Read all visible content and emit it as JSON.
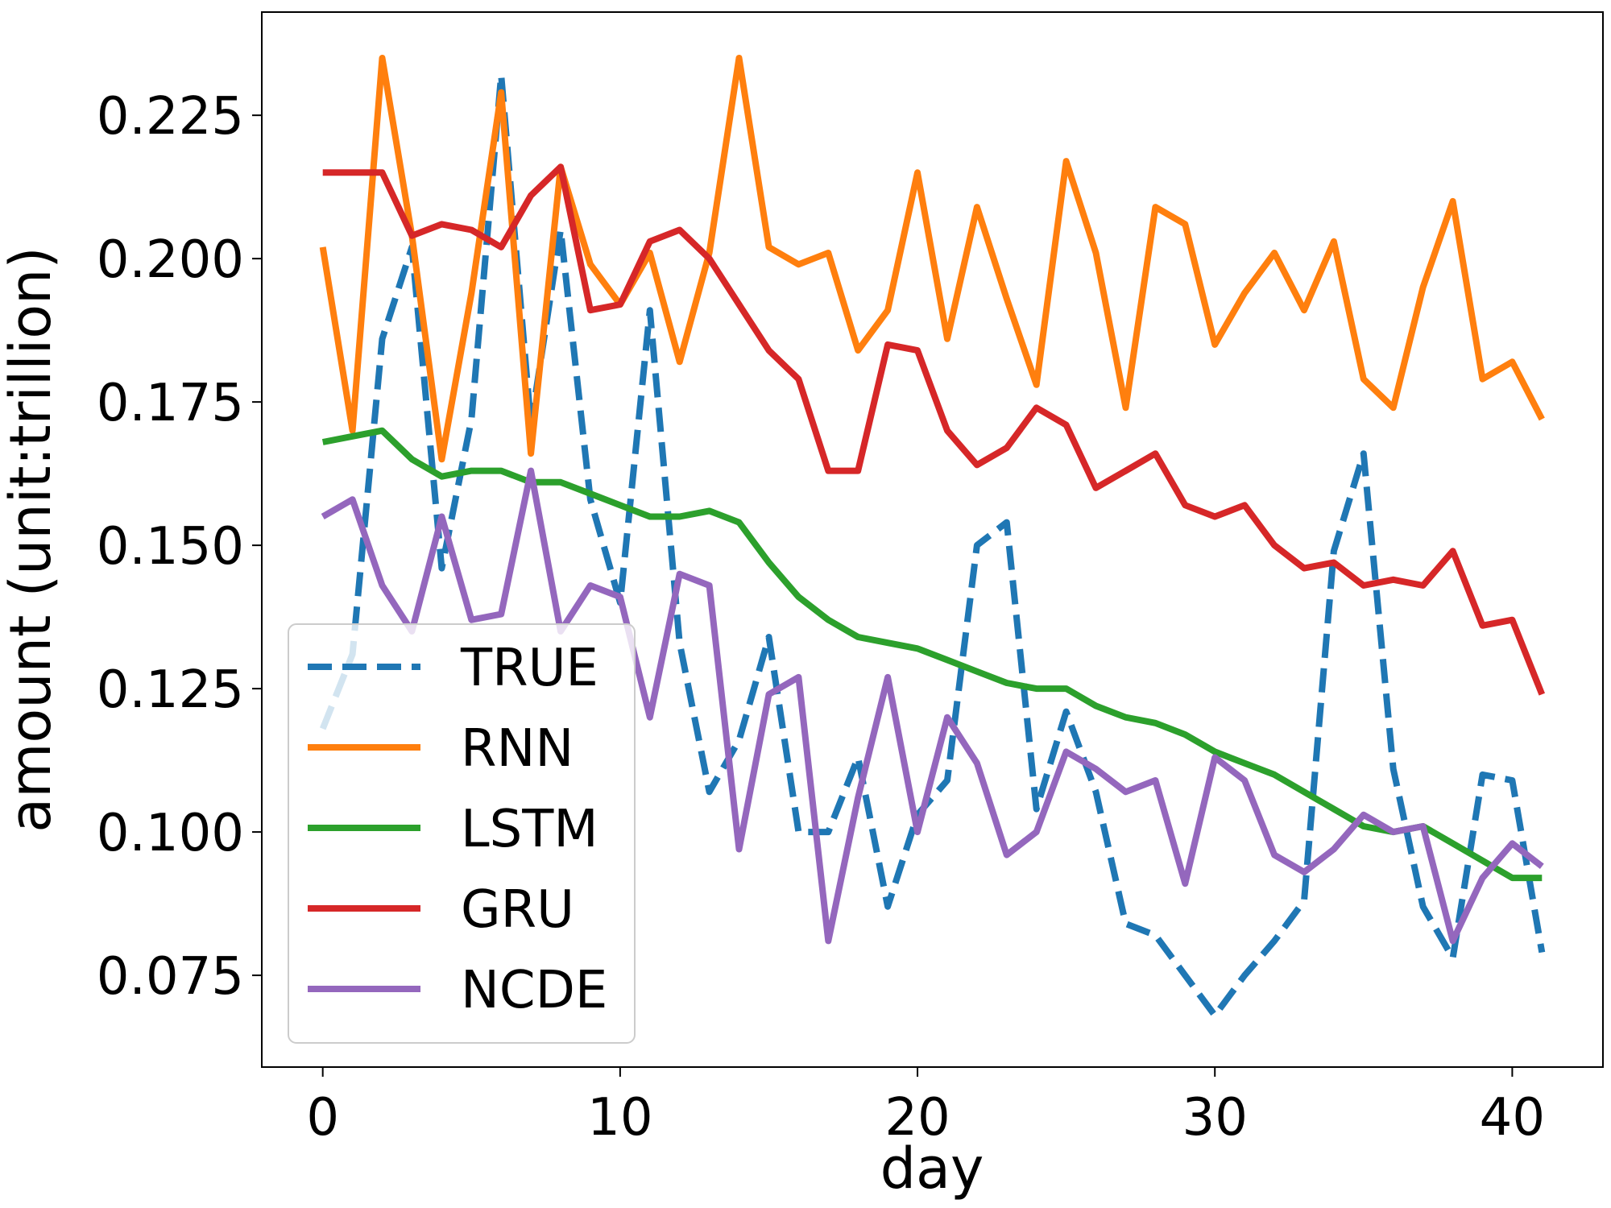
{
  "chart_data": {
    "type": "line",
    "xlabel": "day",
    "ylabel": "amount (unit:trillion)",
    "xlim": [
      -2.05,
      43.05
    ],
    "ylim": [
      0.059,
      0.243
    ],
    "xticks": [
      0,
      10,
      20,
      30,
      40
    ],
    "xtick_labels": [
      "0",
      "10",
      "20",
      "30",
      "40"
    ],
    "yticks": [
      0.075,
      0.1,
      0.125,
      0.15,
      0.175,
      0.2,
      0.225
    ],
    "ytick_labels": [
      "0.075",
      "0.100",
      "0.125",
      "0.150",
      "0.175",
      "0.200",
      "0.225"
    ],
    "grid": false,
    "legend_position": "lower-left",
    "x": [
      0,
      1,
      2,
      3,
      4,
      5,
      6,
      7,
      8,
      9,
      10,
      11,
      12,
      13,
      14,
      15,
      16,
      17,
      18,
      19,
      20,
      21,
      22,
      23,
      24,
      25,
      26,
      27,
      28,
      29,
      30,
      31,
      32,
      33,
      34,
      35,
      36,
      37,
      38,
      39,
      40,
      41
    ],
    "series": [
      {
        "name": "TRUE",
        "color": "#1f77b4",
        "dashed": true,
        "values": [
          0.118,
          0.131,
          0.186,
          0.202,
          0.146,
          0.172,
          0.232,
          0.171,
          0.205,
          0.158,
          0.14,
          0.191,
          0.133,
          0.107,
          0.116,
          0.134,
          0.1,
          0.1,
          0.113,
          0.087,
          0.103,
          0.109,
          0.15,
          0.154,
          0.104,
          0.121,
          0.107,
          0.084,
          0.082,
          0.075,
          0.068,
          0.075,
          0.081,
          0.088,
          0.149,
          0.166,
          0.111,
          0.087,
          0.078,
          0.11,
          0.109,
          0.079
        ]
      },
      {
        "name": "RNN",
        "color": "#ff7f0e",
        "dashed": false,
        "values": [
          0.202,
          0.17,
          0.235,
          0.204,
          0.165,
          0.194,
          0.229,
          0.166,
          0.216,
          0.199,
          0.192,
          0.201,
          0.182,
          0.201,
          0.235,
          0.202,
          0.199,
          0.201,
          0.184,
          0.191,
          0.215,
          0.186,
          0.209,
          0.193,
          0.178,
          0.217,
          0.201,
          0.174,
          0.209,
          0.206,
          0.185,
          0.194,
          0.201,
          0.191,
          0.203,
          0.179,
          0.174,
          0.195,
          0.21,
          0.179,
          0.182,
          0.172
        ]
      },
      {
        "name": "LSTM",
        "color": "#2ca02c",
        "dashed": false,
        "values": [
          0.168,
          0.169,
          0.17,
          0.165,
          0.162,
          0.163,
          0.163,
          0.161,
          0.161,
          0.159,
          0.157,
          0.155,
          0.155,
          0.156,
          0.154,
          0.147,
          0.141,
          0.137,
          0.134,
          0.133,
          0.132,
          0.13,
          0.128,
          0.126,
          0.125,
          0.125,
          0.122,
          0.12,
          0.119,
          0.117,
          0.114,
          0.112,
          0.11,
          0.107,
          0.104,
          0.101,
          0.1,
          0.101,
          0.098,
          0.095,
          0.092,
          0.092
        ]
      },
      {
        "name": "GRU",
        "color": "#d62728",
        "dashed": false,
        "values": [
          0.215,
          0.215,
          0.215,
          0.204,
          0.206,
          0.205,
          0.202,
          0.211,
          0.216,
          0.191,
          0.192,
          0.203,
          0.205,
          0.2,
          0.192,
          0.184,
          0.179,
          0.163,
          0.163,
          0.185,
          0.184,
          0.17,
          0.164,
          0.167,
          0.174,
          0.171,
          0.16,
          0.163,
          0.166,
          0.157,
          0.155,
          0.157,
          0.15,
          0.146,
          0.147,
          0.143,
          0.144,
          0.143,
          0.149,
          0.136,
          0.137,
          0.124
        ]
      },
      {
        "name": "NCDE",
        "color": "#9467bd",
        "dashed": false,
        "values": [
          0.155,
          0.158,
          0.143,
          0.135,
          0.155,
          0.137,
          0.138,
          0.163,
          0.135,
          0.143,
          0.141,
          0.12,
          0.145,
          0.143,
          0.097,
          0.124,
          0.127,
          0.081,
          0.106,
          0.127,
          0.1,
          0.12,
          0.112,
          0.096,
          0.1,
          0.114,
          0.111,
          0.107,
          0.109,
          0.091,
          0.113,
          0.109,
          0.096,
          0.093,
          0.097,
          0.103,
          0.1,
          0.101,
          0.081,
          0.092,
          0.098,
          0.094
        ]
      }
    ]
  }
}
